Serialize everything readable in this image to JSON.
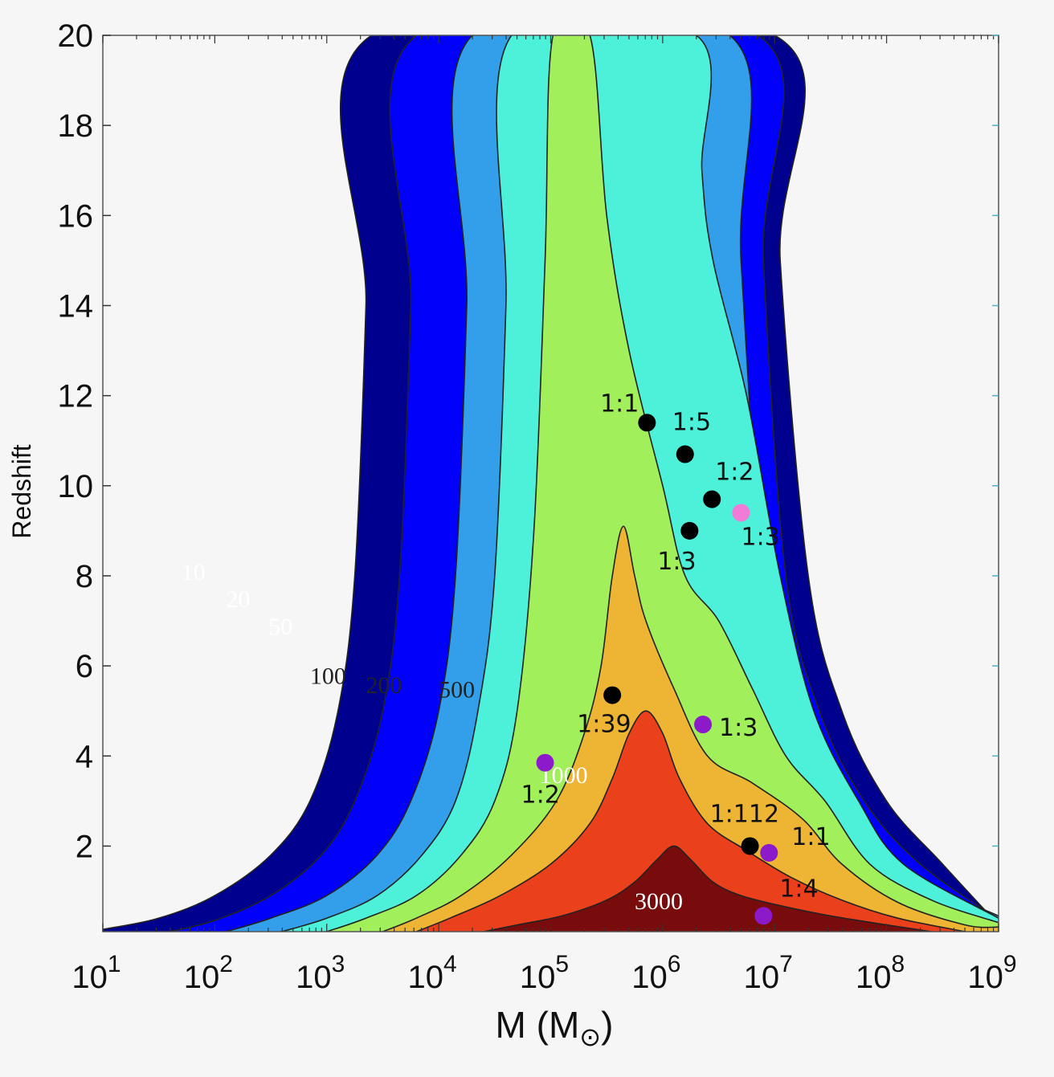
{
  "chart_data": {
    "type": "contour",
    "xlabel": "M (M",
    "xlabel_symbol": "⊙",
    "xlabel_close": ")",
    "ylabel": "Redshift",
    "xscale": "log",
    "xlim": [
      10,
      1000000000
    ],
    "ylim": [
      0.1,
      20
    ],
    "x_ticks": [
      {
        "base": "10",
        "exp": "1",
        "value": 10
      },
      {
        "base": "10",
        "exp": "2",
        "value": 100
      },
      {
        "base": "10",
        "exp": "3",
        "value": 1000
      },
      {
        "base": "10",
        "exp": "4",
        "value": 10000
      },
      {
        "base": "10",
        "exp": "5",
        "value": 100000
      },
      {
        "base": "10",
        "exp": "6",
        "value": 1000000
      },
      {
        "base": "10",
        "exp": "7",
        "value": 10000000
      },
      {
        "base": "10",
        "exp": "8",
        "value": 100000000
      },
      {
        "base": "10",
        "exp": "9",
        "value": 1000000000
      }
    ],
    "y_ticks": [
      {
        "label": "2",
        "value": 2
      },
      {
        "label": "4",
        "value": 4
      },
      {
        "label": "6",
        "value": 6
      },
      {
        "label": "8",
        "value": 8
      },
      {
        "label": "10",
        "value": 10
      },
      {
        "label": "12",
        "value": 12
      },
      {
        "label": "14",
        "value": 14
      },
      {
        "label": "16",
        "value": 16
      },
      {
        "label": "18",
        "value": 18
      },
      {
        "label": "20",
        "value": 20
      }
    ],
    "contour_levels": [
      {
        "level": "10",
        "color": "#00008f",
        "label_color": "#ffffff",
        "label_pos": [
          1.7,
          7.9
        ],
        "left": [
          [
            3.4,
            20
          ],
          [
            3.35,
            14
          ],
          [
            3.25,
            8
          ],
          [
            3.1,
            5
          ],
          [
            2.85,
            3
          ],
          [
            2.5,
            1.8
          ],
          [
            2.0,
            0.9
          ],
          [
            1.5,
            0.4
          ],
          [
            1.0,
            0.15
          ]
        ],
        "right": [
          [
            7.0,
            20
          ],
          [
            7.05,
            15
          ],
          [
            7.3,
            8
          ],
          [
            7.6,
            5
          ],
          [
            8.0,
            3
          ],
          [
            8.5,
            1.6
          ],
          [
            9.0,
            0.25
          ]
        ]
      },
      {
        "level": "20",
        "color": "#0000fb",
        "label_color": "#ffffff",
        "label_pos": [
          2.1,
          7.3
        ],
        "left": [
          [
            3.8,
            20
          ],
          [
            3.75,
            14
          ],
          [
            3.65,
            8
          ],
          [
            3.5,
            5
          ],
          [
            3.25,
            3
          ],
          [
            2.95,
            1.8
          ],
          [
            2.5,
            0.9
          ],
          [
            2.0,
            0.35
          ],
          [
            1.6,
            0.1
          ]
        ],
        "right": [
          [
            6.85,
            20
          ],
          [
            6.9,
            15
          ],
          [
            7.1,
            8
          ],
          [
            7.4,
            5
          ],
          [
            7.8,
            3
          ],
          [
            8.3,
            1.6
          ],
          [
            9.0,
            0.38
          ]
        ]
      },
      {
        "level": "50",
        "color": "#339ee9",
        "label_color": "#ffffff",
        "label_pos": [
          2.48,
          6.7
        ],
        "left": [
          [
            4.3,
            20
          ],
          [
            4.25,
            14
          ],
          [
            4.15,
            8
          ],
          [
            4.0,
            5
          ],
          [
            3.75,
            3
          ],
          [
            3.45,
            1.8
          ],
          [
            3.0,
            0.9
          ],
          [
            2.5,
            0.4
          ],
          [
            2.1,
            0.1
          ]
        ],
        "right": [
          [
            6.6,
            20
          ],
          [
            6.7,
            15
          ],
          [
            6.9,
            8
          ],
          [
            7.2,
            5
          ],
          [
            7.55,
            3
          ],
          [
            8.0,
            1.6
          ],
          [
            9.0,
            0.45
          ]
        ]
      },
      {
        "level": "100",
        "color": "#4df0d8",
        "label_color": "#222222",
        "label_pos": [
          2.85,
          5.6
        ],
        "left": [
          [
            4.65,
            20
          ],
          [
            4.6,
            14
          ],
          [
            4.5,
            8
          ],
          [
            4.35,
            5
          ],
          [
            4.15,
            3
          ],
          [
            3.85,
            1.8
          ],
          [
            3.45,
            0.9
          ],
          [
            3.0,
            0.4
          ],
          [
            2.6,
            0.1
          ]
        ],
        "right": [
          [
            6.3,
            20
          ],
          [
            6.35,
            17
          ],
          [
            6.45,
            15
          ],
          [
            6.75,
            12
          ],
          [
            7.05,
            8
          ],
          [
            7.35,
            5
          ],
          [
            7.75,
            3
          ],
          [
            8.15,
            1.6
          ],
          [
            9.0,
            0.4
          ]
        ]
      },
      {
        "level": "200",
        "color": "#a2ef5c",
        "label_color": "#222222",
        "label_pos": [
          3.35,
          5.4
        ],
        "left": [
          [
            5.02,
            20
          ],
          [
            4.95,
            15
          ],
          [
            4.85,
            9
          ],
          [
            4.7,
            5
          ],
          [
            4.5,
            3
          ],
          [
            4.2,
            1.8
          ],
          [
            3.8,
            0.9
          ],
          [
            3.35,
            0.4
          ],
          [
            3.0,
            0.1
          ]
        ],
        "right": [
          [
            5.35,
            20
          ],
          [
            5.5,
            16
          ],
          [
            5.7,
            13
          ],
          [
            6.0,
            10
          ],
          [
            6.2,
            8
          ],
          [
            6.5,
            7
          ],
          [
            6.8,
            5.5
          ],
          [
            7.1,
            4
          ],
          [
            7.45,
            3
          ],
          [
            7.85,
            1.6
          ],
          [
            8.4,
            0.8
          ],
          [
            9.0,
            0.3
          ]
        ]
      },
      {
        "level": "500",
        "color": "#eeb535",
        "label_color": "#222222",
        "label_pos": [
          4.0,
          5.3
        ],
        "left": [
          [
            5.65,
            9.1
          ],
          [
            5.55,
            8
          ],
          [
            5.45,
            6
          ],
          [
            5.3,
            4.5
          ],
          [
            5.05,
            3
          ],
          [
            4.65,
            1.8
          ],
          [
            4.2,
            0.9
          ],
          [
            3.8,
            0.4
          ],
          [
            3.5,
            0.1
          ]
        ],
        "right": [
          [
            5.65,
            9.1
          ],
          [
            5.75,
            8
          ],
          [
            5.85,
            7
          ],
          [
            6.1,
            5.5
          ],
          [
            6.4,
            4
          ],
          [
            6.8,
            3.4
          ],
          [
            7.25,
            2.6
          ],
          [
            7.6,
            1.6
          ],
          [
            8.1,
            0.75
          ],
          [
            8.7,
            0.25
          ],
          [
            9.0,
            0.2
          ]
        ]
      },
      {
        "level": "1000",
        "color": "#ea401c",
        "label_color": "#ffffff",
        "label_pos": [
          4.9,
          3.4
        ],
        "left": [
          [
            5.85,
            5.0
          ],
          [
            5.7,
            4.5
          ],
          [
            5.55,
            3.5
          ],
          [
            5.35,
            2.5
          ],
          [
            5.0,
            1.6
          ],
          [
            4.55,
            0.9
          ],
          [
            4.1,
            0.4
          ],
          [
            3.8,
            0.1
          ]
        ],
        "right": [
          [
            5.85,
            5.0
          ],
          [
            6.0,
            4.5
          ],
          [
            6.15,
            3.5
          ],
          [
            6.4,
            2.5
          ],
          [
            6.75,
            1.9
          ],
          [
            7.15,
            1.3
          ],
          [
            7.6,
            0.8
          ],
          [
            8.1,
            0.4
          ],
          [
            8.7,
            0.1
          ]
        ]
      },
      {
        "level": "3000",
        "color": "#780b0b",
        "label_color": "#ffffff",
        "label_pos": [
          5.75,
          0.6
        ],
        "left": [
          [
            6.1,
            2.0
          ],
          [
            5.95,
            1.7
          ],
          [
            5.75,
            1.2
          ],
          [
            5.5,
            0.8
          ],
          [
            5.1,
            0.45
          ],
          [
            4.7,
            0.25
          ],
          [
            4.4,
            0.1
          ]
        ],
        "right": [
          [
            6.1,
            2.0
          ],
          [
            6.25,
            1.7
          ],
          [
            6.45,
            1.2
          ],
          [
            6.7,
            0.9
          ],
          [
            7.1,
            0.65
          ],
          [
            7.5,
            0.45
          ],
          [
            8.0,
            0.25
          ],
          [
            8.4,
            0.1
          ]
        ]
      }
    ],
    "points": [
      {
        "label": "1:1",
        "logM": 5.86,
        "z": 11.4,
        "color": "#000000",
        "label_offset": [
          -10,
          -14
        ],
        "anchor": "end"
      },
      {
        "label": "1:5",
        "logM": 6.2,
        "z": 10.7,
        "color": "#000000",
        "label_offset": [
          -16,
          -30
        ],
        "anchor": "start"
      },
      {
        "label": "1:2",
        "logM": 6.44,
        "z": 9.7,
        "color": "#000000",
        "label_offset": [
          4,
          -24
        ],
        "anchor": "start"
      },
      {
        "label": "1:3",
        "logM": 6.7,
        "z": 9.4,
        "color": "#f07cd8",
        "label_offset": [
          0,
          40
        ],
        "anchor": "start"
      },
      {
        "label": "1:3",
        "logM": 6.24,
        "z": 9.0,
        "color": "#000000",
        "label_offset": [
          -40,
          48
        ],
        "anchor": "start"
      },
      {
        "label": "1:39",
        "logM": 5.55,
        "z": 5.35,
        "color": "#000000",
        "label_offset": [
          -44,
          46
        ],
        "anchor": "start"
      },
      {
        "label": "1:3",
        "logM": 6.36,
        "z": 4.7,
        "color": "#8c1aca",
        "label_offset": [
          20,
          14
        ],
        "anchor": "start"
      },
      {
        "label": "1:2",
        "logM": 4.95,
        "z": 3.85,
        "color": "#8c1aca",
        "label_offset": [
          -30,
          50
        ],
        "anchor": "start"
      },
      {
        "label": "1:112",
        "logM": 6.78,
        "z": 2.0,
        "color": "#000000",
        "label_offset": [
          -50,
          -30
        ],
        "anchor": "start"
      },
      {
        "label": "1:1",
        "logM": 6.95,
        "z": 1.85,
        "color": "#8c1aca",
        "label_offset": [
          28,
          -10
        ],
        "anchor": "start"
      },
      {
        "label": "1:4",
        "logM": 6.9,
        "z": 0.45,
        "color": "#8c1aca",
        "label_offset": [
          20,
          -24
        ],
        "anchor": "start"
      }
    ]
  }
}
